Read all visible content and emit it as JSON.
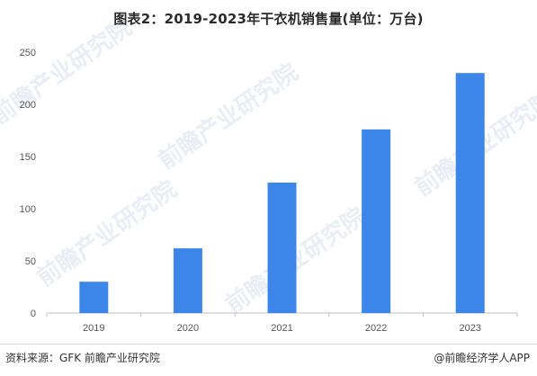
{
  "title": "图表2：2019-2023年干衣机销售量(单位：万台)",
  "footer": {
    "source": "资料来源：GFK 前瞻产业研究院",
    "credit": "@前瞻经济学人APP"
  },
  "watermark": {
    "text": "前瞻产业研究院"
  },
  "colors": {
    "bar": "#3b86e8",
    "axis": "#bfbfbf",
    "watermark": "#e9eef5"
  },
  "chart_data": {
    "type": "bar",
    "title": "图表2：2019-2023年干衣机销售量(单位：万台)",
    "xlabel": "",
    "ylabel": "",
    "categories": [
      "2019",
      "2020",
      "2021",
      "2022",
      "2023"
    ],
    "values": [
      30,
      62,
      125,
      176,
      230
    ],
    "ylim": [
      0,
      250
    ],
    "yticks": [
      0,
      50,
      100,
      150,
      200,
      250
    ],
    "grid": false,
    "legend": "none"
  }
}
